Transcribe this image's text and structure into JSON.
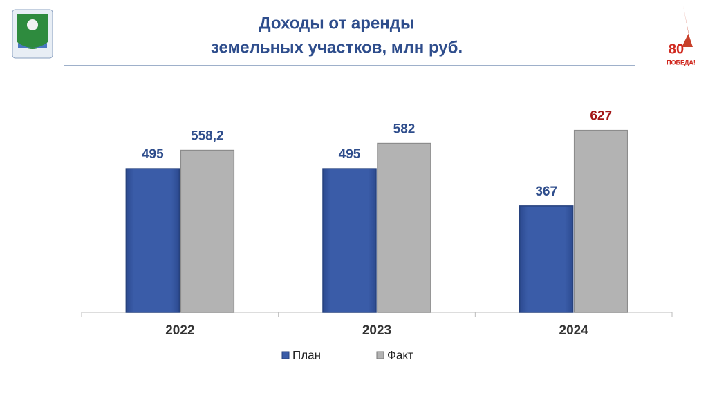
{
  "header": {
    "badge": [
      "80",
      "ПОБЕДА!"
    ]
  },
  "chart_data": {
    "type": "bar",
    "title": [
      "Доходы от аренды",
      "земельных участков, млн руб."
    ],
    "categories": [
      "2022",
      "2023",
      "2024"
    ],
    "series": [
      {
        "name": "План",
        "color": "#3a5ca8",
        "values": [
          495,
          495,
          367
        ],
        "label_colors": [
          "#2e4d8c",
          "#2e4d8c",
          "#2e4d8c"
        ]
      },
      {
        "name": "Факт",
        "color": "#b3b3b3",
        "values": [
          558.2,
          582,
          627
        ],
        "value_labels": [
          "558,2",
          "582",
          "627"
        ],
        "label_colors": [
          "#2e4d8c",
          "#2e4d8c",
          "#a31515"
        ]
      }
    ],
    "ylim": [
      0,
      700
    ],
    "legend": "bottom"
  }
}
